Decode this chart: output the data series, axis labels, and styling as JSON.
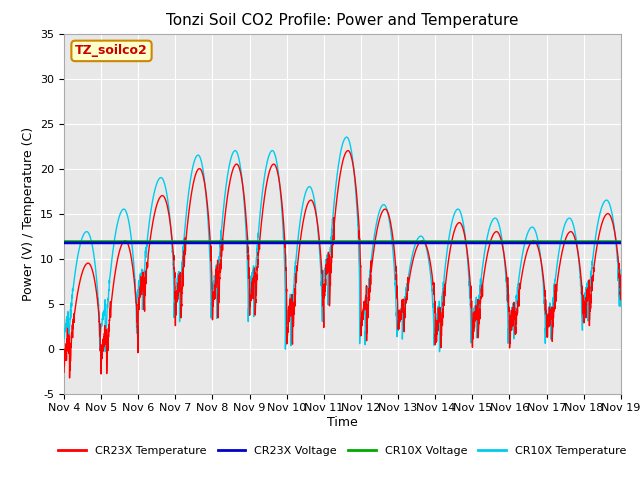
{
  "title": "Tonzi Soil CO2 Profile: Power and Temperature",
  "xlabel": "Time",
  "ylabel": "Power (V) / Temperature (C)",
  "ylim": [
    -5,
    35
  ],
  "xlim": [
    0,
    15
  ],
  "x_tick_labels": [
    "Nov 4",
    "Nov 5",
    "Nov 6",
    "Nov 7",
    "Nov 8",
    "Nov 9",
    "Nov 10",
    "Nov 11",
    "Nov 12",
    "Nov 13",
    "Nov 14",
    "Nov 15",
    "Nov 16",
    "Nov 17",
    "Nov 18",
    "Nov 19"
  ],
  "x_tick_positions": [
    0,
    1,
    2,
    3,
    4,
    5,
    6,
    7,
    8,
    9,
    10,
    11,
    12,
    13,
    14,
    15
  ],
  "cr23x_voltage_value": 11.75,
  "cr10x_voltage_value": 11.85,
  "colors": {
    "cr23x_temp": "#ff0000",
    "cr23x_voltage": "#0000cc",
    "cr10x_voltage": "#00aa00",
    "cr10x_temp": "#00ccee"
  },
  "label_box_text": "TZ_soilco2",
  "label_box_bg": "#ffffcc",
  "label_box_edge": "#cc8800",
  "label_text_color": "#cc0000",
  "plot_bg": "#e8e8e8",
  "fig_bg": "#ffffff",
  "legend_entries": [
    "CR23X Temperature",
    "CR23X Voltage",
    "CR10X Voltage",
    "CR10X Temperature"
  ],
  "title_fontsize": 11,
  "axis_label_fontsize": 9,
  "tick_fontsize": 8,
  "yticks": [
    -5,
    0,
    5,
    10,
    15,
    20,
    25,
    30,
    35
  ],
  "day_peak_amps": [
    12,
    14,
    13,
    17,
    17,
    17,
    16,
    17,
    14,
    10,
    14,
    12,
    11,
    12,
    12
  ],
  "day_trough_levels": [
    -2.5,
    -2,
    4,
    3,
    3.5,
    3.5,
    0.5,
    5,
    1.5,
    2,
    0,
    1,
    1,
    1,
    3
  ],
  "cyan_offset": [
    2,
    2,
    0.5,
    0,
    0,
    0,
    0,
    0,
    -1,
    -1,
    0,
    0,
    0,
    0,
    0
  ]
}
